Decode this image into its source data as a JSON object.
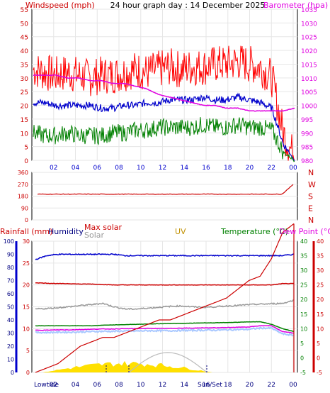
{
  "colors": {
    "wind": "#ff0000",
    "gust": "#ff0000",
    "avg": "#0000cc",
    "speed": "#008000",
    "baro": "#e000e0",
    "red": "#cc0000",
    "blue": "#0000cc",
    "gray": "#999999",
    "uv": "#c09000",
    "green": "#008000",
    "pink": "#e000e0",
    "lightblue": "#a8c8ff",
    "yellow": "#ffe000",
    "navy": "#000080"
  },
  "header": {
    "left": "Windspeed (mph)",
    "center": "24 hour graph day : 14 December 2025",
    "right": "Barometer (hpa)"
  },
  "bottom_labels": {
    "rain": "Rainfall (mm)",
    "humidity": "Humidity",
    "max_solar": "Max solar",
    "solar": "Solar",
    "uv": "UV",
    "temp": "Temperature (°C)",
    "dew": "Dew Point (°C)",
    "lowtide": "Lowtide",
    "sunset": "Sun/Set"
  },
  "chart_data": [
    {
      "type": "line",
      "title": "24 hour graph day : 14 December 2025",
      "x_ticks": [
        "02",
        "04",
        "06",
        "08",
        "10",
        "12",
        "14",
        "16",
        "18",
        "20",
        "22",
        "00"
      ],
      "y_left": {
        "label": "Windspeed (mph)",
        "range": [
          0,
          55
        ],
        "ticks": [
          0,
          5,
          10,
          15,
          20,
          25,
          30,
          35,
          40,
          45,
          50,
          55
        ]
      },
      "y_right": {
        "label": "Barometer (hpa)",
        "range": [
          980,
          1035
        ],
        "ticks": [
          980,
          985,
          990,
          995,
          1000,
          1005,
          1010,
          1015,
          1020,
          1025,
          1030,
          1035
        ]
      },
      "series": [
        {
          "name": "gust",
          "color": "#ff0000",
          "approx_hourly": [
            33,
            32,
            31,
            32,
            31,
            30,
            31,
            31,
            32,
            33,
            32,
            33,
            34,
            33,
            34,
            34,
            35,
            35,
            36,
            35,
            34,
            30,
            10,
            1
          ]
        },
        {
          "name": "average",
          "color": "#0000cc",
          "approx_hourly": [
            21,
            21,
            20,
            20,
            20,
            20,
            19,
            19,
            20,
            20,
            21,
            21,
            22,
            22,
            22,
            23,
            22,
            22,
            23,
            22,
            21,
            19,
            6,
            0
          ]
        },
        {
          "name": "speed",
          "color": "#008000",
          "approx_hourly": [
            10,
            9,
            9,
            10,
            9,
            9,
            9,
            10,
            10,
            11,
            11,
            12,
            12,
            12,
            12,
            13,
            12,
            12,
            13,
            12,
            12,
            11,
            3,
            0
          ]
        },
        {
          "name": "barometer",
          "color": "#e000e0",
          "approx_hourly": [
            1011,
            1011,
            1011,
            1010,
            1010,
            1009,
            1009,
            1008,
            1008,
            1007,
            1006,
            1004,
            1003,
            1002,
            1001,
            1000,
            1000,
            999,
            999,
            998,
            998,
            998,
            998,
            999
          ]
        }
      ]
    },
    {
      "type": "line",
      "y_range": [
        0,
        360
      ],
      "y_ticks": [
        0,
        90,
        180,
        270,
        360
      ],
      "direction_letters": [
        "N",
        "W",
        "S",
        "E",
        "N"
      ],
      "series": [
        {
          "name": "wind direction",
          "color": "#cc0000",
          "approx_hourly": [
            195,
            195,
            195,
            195,
            195,
            195,
            195,
            195,
            195,
            195,
            195,
            195,
            195,
            195,
            195,
            195,
            195,
            195,
            195,
            195,
            195,
            195,
            195,
            270
          ]
        }
      ]
    },
    {
      "type": "line",
      "x_ticks": [
        "02",
        "04",
        "06",
        "08",
        "10",
        "12",
        "14",
        "16",
        "18",
        "20",
        "22",
        "00"
      ],
      "y_left_outer": {
        "label": "Rainfall (mm)",
        "range": [
          0,
          100
        ],
        "ticks": [
          0,
          10,
          20,
          30,
          40,
          50,
          60,
          70,
          80,
          90,
          100
        ]
      },
      "y_left_inner": {
        "label": "Humidity",
        "range": [
          0,
          30
        ],
        "ticks": [
          0,
          5,
          10,
          15,
          20,
          25,
          30
        ]
      },
      "y_right_inner": {
        "label": "Temperature (°C)",
        "range": [
          -5,
          40
        ],
        "ticks": [
          -5,
          0,
          5,
          10,
          15,
          20,
          25,
          30,
          35,
          40
        ]
      },
      "y_right_outer": {
        "label": "Dew Point (°C)",
        "range": [
          -5,
          40
        ],
        "ticks": [
          -5,
          0,
          5,
          10,
          15,
          20,
          25,
          30,
          35,
          40
        ]
      },
      "series": [
        {
          "name": "Humidity",
          "color": "#0000cc",
          "approx_hourly": [
            86,
            89,
            90,
            90,
            90,
            90,
            90,
            90,
            89,
            89,
            89,
            89,
            89,
            89,
            89,
            89,
            89,
            89,
            89,
            89,
            89,
            89,
            89,
            90
          ]
        },
        {
          "name": "Max solar",
          "color": "#cc0000",
          "approx_hourly": [
            20.5,
            20.4,
            20.3,
            20.3,
            20.2,
            20.2,
            20.1,
            20,
            20,
            20,
            20,
            20,
            20,
            20,
            20,
            20,
            20,
            20,
            20,
            20,
            20,
            20,
            20.3,
            20.3
          ]
        },
        {
          "name": "Solar",
          "color": "#999999",
          "approx_hourly": [
            14.5,
            14.6,
            14.8,
            15,
            15.3,
            15.5,
            15.8,
            15,
            14.5,
            14.5,
            14.7,
            14.9,
            15.1,
            15.2,
            15,
            14.9,
            15,
            15.2,
            15.3,
            15.5,
            15.6,
            15.7,
            15.8,
            16.5
          ]
        },
        {
          "name": "Temperature",
          "color": "#008000",
          "approx_hourly": [
            11,
            11,
            11,
            11,
            11,
            11,
            11.2,
            11.3,
            11.4,
            11.5,
            11.6,
            11.7,
            11.8,
            11.8,
            11.9,
            12,
            12,
            12.1,
            12.2,
            12.3,
            12.4,
            11.5,
            10,
            9
          ]
        },
        {
          "name": "Dew Point",
          "color": "#e000e0",
          "approx_hourly": [
            9.5,
            9.5,
            9.6,
            9.6,
            9.7,
            9.8,
            9.9,
            9.9,
            10,
            10,
            10.1,
            10.1,
            10.1,
            10.2,
            10.2,
            10.3,
            10.3,
            10.4,
            10.5,
            10.6,
            11,
            11,
            9,
            8.5
          ]
        },
        {
          "name": "Rainfall",
          "color": "#cc0000",
          "approx_hourly": [
            0,
            1,
            2,
            4,
            6,
            7,
            8,
            8,
            9,
            10,
            11,
            12,
            12,
            13,
            14,
            15,
            16,
            17,
            19,
            21,
            22,
            26,
            32,
            34
          ]
        }
      ]
    }
  ]
}
